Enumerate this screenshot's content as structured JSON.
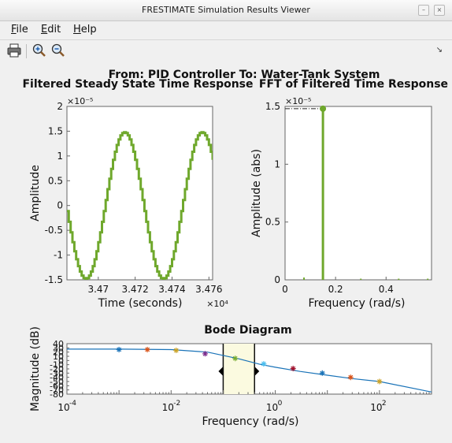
{
  "window": {
    "title": "FRESTIMATE Simulation Results Viewer",
    "minimize_glyph": "–",
    "close_glyph": "×"
  },
  "menu": {
    "file": {
      "mn": "F",
      "rest": "ile"
    },
    "edit": {
      "mn": "E",
      "rest": "dit"
    },
    "help": {
      "mn": "H",
      "rest": "elp"
    }
  },
  "dock_glyph": "↘",
  "toolbar": {
    "icons": [
      "print-icon",
      "zoom-in-icon",
      "zoom-out-icon"
    ]
  },
  "figure": {
    "suptitle": "From: PID Controller  To: Water-Tank System"
  },
  "colors": {
    "signal": "#6fa82c",
    "bode_line": "#1a73b8",
    "highlight": "#fbfae0"
  },
  "chart_data": [
    {
      "type": "line",
      "title": "Filtered Steady State Time Response",
      "xlabel": "Time (seconds)",
      "ylabel": "Amplitude",
      "x_multiplier": "×10⁴",
      "y_multiplier": "×10⁻⁵",
      "xlim": [
        34683,
        34762
      ],
      "ylim": [
        -1.5,
        2
      ],
      "xticks": [
        34700,
        34720,
        34740,
        34760
      ],
      "xtick_labels": [
        "3.47",
        "3.472",
        "3.474",
        "3.476"
      ],
      "yticks": [
        -1.5,
        -1,
        -0.5,
        0,
        0.5,
        1,
        1.5,
        2
      ],
      "ytick_labels": [
        "-1.5",
        "-1",
        "-0.5",
        "0",
        "0.5",
        "1",
        "1.5",
        "2"
      ],
      "series": [
        {
          "type": "sine",
          "amplitude": 1.48,
          "period": 42,
          "peak_times": [
            34714,
            34756
          ],
          "trough_times": [
            34693,
            34735
          ]
        }
      ]
    },
    {
      "type": "bar",
      "title": "FFT of Filtered Time Response",
      "xlabel": "Frequency (rad/s)",
      "ylabel": "Amplitude (abs)",
      "y_multiplier": "×10⁻⁵",
      "xlim": [
        0,
        0.58
      ],
      "ylim": [
        0,
        1.5
      ],
      "xticks": [
        0,
        0.2,
        0.4
      ],
      "xtick_labels": [
        "0",
        "0.2",
        "0.4"
      ],
      "yticks": [
        0,
        0.5,
        1,
        1.5
      ],
      "ytick_labels": [
        "0",
        "0.5",
        "1",
        "1.5"
      ],
      "x": [
        0.075,
        0.15,
        0.3,
        0.45,
        0.565
      ],
      "values": [
        0.02,
        1.48,
        0.01,
        0.01,
        0.01
      ],
      "marker_at": 0.15,
      "reference_line": 1.48
    },
    {
      "type": "line",
      "title": "Bode Diagram",
      "xlabel": "Frequency  (rad/s)",
      "ylabel": "Magnitude (dB)",
      "x_scale": "log",
      "xlim": [
        0.0001,
        1000
      ],
      "ylim": [
        -80,
        40
      ],
      "xticks": [
        0.0001,
        0.01,
        1,
        100
      ],
      "xtick_labels": [
        "10",
        "10",
        "10",
        "10"
      ],
      "xtick_exponents": [
        "-4",
        "-2",
        "0",
        "2"
      ],
      "yticks": [
        -80,
        -70,
        -60,
        -50,
        -40,
        -30,
        -20,
        -10,
        0,
        10,
        20,
        30,
        40
      ],
      "ytick_labels": [
        "-80",
        "-70",
        "-60",
        "-50",
        "-40",
        "-30",
        "-20",
        "-10",
        "0",
        "10",
        "20",
        "30",
        "40"
      ],
      "highlight_range": [
        0.1,
        0.4
      ],
      "model_line": {
        "x": [
          0.0001,
          0.001,
          0.01,
          0.05,
          0.1,
          0.2,
          0.5,
          1,
          3,
          10,
          30,
          100,
          1000
        ],
        "y": [
          27,
          27,
          26,
          20,
          12,
          4,
          -9,
          -16,
          -26,
          -35,
          -43,
          -50,
          -75
        ]
      },
      "estimates": [
        {
          "x": 0.001,
          "y": 26,
          "color": "#1a73b8"
        },
        {
          "x": 0.0035,
          "y": 26,
          "color": "#d95319"
        },
        {
          "x": 0.0125,
          "y": 24,
          "color": "#c9a227"
        },
        {
          "x": 0.045,
          "y": 16,
          "color": "#7e2f8e"
        },
        {
          "x": 0.17,
          "y": 5,
          "color": "#77ac30"
        },
        {
          "x": 0.6,
          "y": -8,
          "color": "#4dbeee"
        },
        {
          "x": 2.2,
          "y": -19,
          "color": "#a2142f"
        },
        {
          "x": 8,
          "y": -30,
          "color": "#1a73b8"
        },
        {
          "x": 28,
          "y": -40,
          "color": "#d95319"
        },
        {
          "x": 100,
          "y": -50,
          "color": "#c9a227"
        }
      ]
    }
  ]
}
